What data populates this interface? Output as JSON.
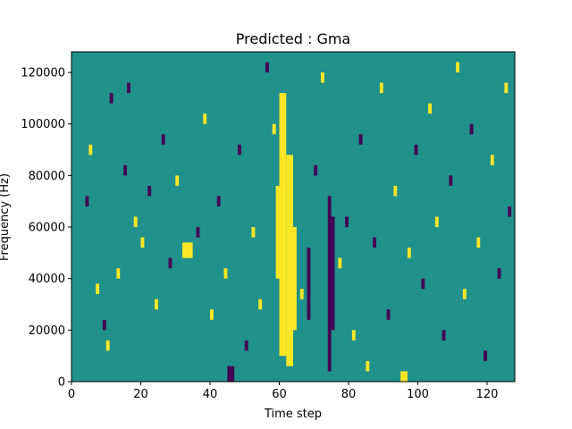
{
  "chart_data": {
    "type": "heatmap",
    "title": "Predicted : Gma",
    "xlabel": "Time step",
    "ylabel": "Frequency (Hz)",
    "xlim": [
      0,
      128
    ],
    "ylim": [
      0,
      128000
    ],
    "xticks": [
      0,
      20,
      40,
      60,
      80,
      100,
      120
    ],
    "yticks": [
      0,
      20000,
      40000,
      60000,
      80000,
      100000,
      120000
    ],
    "n_time_steps": 128,
    "n_freq_bins": 64,
    "value_range": [
      -1,
      1
    ],
    "colormap": {
      "low": "#440154",
      "mid": "#21918c",
      "high": "#fde725"
    },
    "background_value": 0,
    "grid": false,
    "cells": [
      {
        "t": [
          60,
          62
        ],
        "f": [
          5,
          56
        ],
        "v": 1
      },
      {
        "t": [
          62,
          64
        ],
        "f": [
          3,
          44
        ],
        "v": 1
      },
      {
        "t": [
          59,
          60
        ],
        "f": [
          20,
          38
        ],
        "v": 1
      },
      {
        "t": [
          64,
          65
        ],
        "f": [
          10,
          30
        ],
        "v": 1
      },
      {
        "t": [
          32,
          35
        ],
        "f": [
          24,
          27
        ],
        "v": 1
      },
      {
        "t": [
          74,
          75
        ],
        "f": [
          2,
          36
        ],
        "v": -1
      },
      {
        "t": [
          75,
          76
        ],
        "f": [
          10,
          32
        ],
        "v": -1
      },
      {
        "t": [
          68,
          69
        ],
        "f": [
          12,
          26
        ],
        "v": -1
      },
      {
        "t": [
          45,
          47
        ],
        "f": [
          0,
          3
        ],
        "v": -1
      },
      {
        "t": [
          4,
          5
        ],
        "f": [
          34,
          36
        ],
        "v": -1
      },
      {
        "t": [
          5,
          6
        ],
        "f": [
          44,
          46
        ],
        "v": 1
      },
      {
        "t": [
          7,
          8
        ],
        "f": [
          17,
          19
        ],
        "v": 1
      },
      {
        "t": [
          9,
          10
        ],
        "f": [
          10,
          12
        ],
        "v": -1
      },
      {
        "t": [
          10,
          11
        ],
        "f": [
          6,
          8
        ],
        "v": 1
      },
      {
        "t": [
          11,
          12
        ],
        "f": [
          54,
          56
        ],
        "v": -1
      },
      {
        "t": [
          13,
          14
        ],
        "f": [
          20,
          22
        ],
        "v": 1
      },
      {
        "t": [
          15,
          16
        ],
        "f": [
          40,
          42
        ],
        "v": -1
      },
      {
        "t": [
          16,
          17
        ],
        "f": [
          56,
          58
        ],
        "v": -1
      },
      {
        "t": [
          18,
          19
        ],
        "f": [
          30,
          32
        ],
        "v": 1
      },
      {
        "t": [
          20,
          21
        ],
        "f": [
          26,
          28
        ],
        "v": 1
      },
      {
        "t": [
          22,
          23
        ],
        "f": [
          36,
          38
        ],
        "v": -1
      },
      {
        "t": [
          24,
          25
        ],
        "f": [
          14,
          16
        ],
        "v": 1
      },
      {
        "t": [
          26,
          27
        ],
        "f": [
          46,
          48
        ],
        "v": -1
      },
      {
        "t": [
          28,
          29
        ],
        "f": [
          22,
          24
        ],
        "v": -1
      },
      {
        "t": [
          30,
          31
        ],
        "f": [
          38,
          40
        ],
        "v": 1
      },
      {
        "t": [
          36,
          37
        ],
        "f": [
          28,
          30
        ],
        "v": -1
      },
      {
        "t": [
          38,
          39
        ],
        "f": [
          50,
          52
        ],
        "v": 1
      },
      {
        "t": [
          40,
          41
        ],
        "f": [
          12,
          14
        ],
        "v": 1
      },
      {
        "t": [
          42,
          43
        ],
        "f": [
          34,
          36
        ],
        "v": -1
      },
      {
        "t": [
          44,
          45
        ],
        "f": [
          20,
          22
        ],
        "v": 1
      },
      {
        "t": [
          48,
          49
        ],
        "f": [
          44,
          46
        ],
        "v": -1
      },
      {
        "t": [
          50,
          51
        ],
        "f": [
          6,
          8
        ],
        "v": -1
      },
      {
        "t": [
          52,
          53
        ],
        "f": [
          28,
          30
        ],
        "v": 1
      },
      {
        "t": [
          54,
          55
        ],
        "f": [
          14,
          16
        ],
        "v": 1
      },
      {
        "t": [
          56,
          57
        ],
        "f": [
          60,
          62
        ],
        "v": -1
      },
      {
        "t": [
          58,
          59
        ],
        "f": [
          48,
          50
        ],
        "v": 1
      },
      {
        "t": [
          66,
          67
        ],
        "f": [
          16,
          18
        ],
        "v": 1
      },
      {
        "t": [
          70,
          71
        ],
        "f": [
          40,
          42
        ],
        "v": -1
      },
      {
        "t": [
          72,
          73
        ],
        "f": [
          58,
          60
        ],
        "v": 1
      },
      {
        "t": [
          77,
          78
        ],
        "f": [
          22,
          24
        ],
        "v": 1
      },
      {
        "t": [
          79,
          80
        ],
        "f": [
          30,
          32
        ],
        "v": -1
      },
      {
        "t": [
          81,
          82
        ],
        "f": [
          8,
          10
        ],
        "v": 1
      },
      {
        "t": [
          83,
          84
        ],
        "f": [
          46,
          48
        ],
        "v": -1
      },
      {
        "t": [
          85,
          86
        ],
        "f": [
          2,
          4
        ],
        "v": 1
      },
      {
        "t": [
          87,
          88
        ],
        "f": [
          26,
          28
        ],
        "v": -1
      },
      {
        "t": [
          89,
          90
        ],
        "f": [
          56,
          58
        ],
        "v": 1
      },
      {
        "t": [
          91,
          92
        ],
        "f": [
          12,
          14
        ],
        "v": -1
      },
      {
        "t": [
          93,
          94
        ],
        "f": [
          36,
          38
        ],
        "v": 1
      },
      {
        "t": [
          95,
          97
        ],
        "f": [
          0,
          2
        ],
        "v": 1
      },
      {
        "t": [
          97,
          98
        ],
        "f": [
          24,
          26
        ],
        "v": 1
      },
      {
        "t": [
          99,
          100
        ],
        "f": [
          44,
          46
        ],
        "v": -1
      },
      {
        "t": [
          101,
          102
        ],
        "f": [
          18,
          20
        ],
        "v": -1
      },
      {
        "t": [
          103,
          104
        ],
        "f": [
          52,
          54
        ],
        "v": 1
      },
      {
        "t": [
          105,
          106
        ],
        "f": [
          30,
          32
        ],
        "v": 1
      },
      {
        "t": [
          107,
          108
        ],
        "f": [
          8,
          10
        ],
        "v": -1
      },
      {
        "t": [
          109,
          110
        ],
        "f": [
          38,
          40
        ],
        "v": -1
      },
      {
        "t": [
          111,
          112
        ],
        "f": [
          60,
          62
        ],
        "v": 1
      },
      {
        "t": [
          113,
          114
        ],
        "f": [
          16,
          18
        ],
        "v": 1
      },
      {
        "t": [
          115,
          116
        ],
        "f": [
          48,
          50
        ],
        "v": -1
      },
      {
        "t": [
          117,
          118
        ],
        "f": [
          26,
          28
        ],
        "v": 1
      },
      {
        "t": [
          119,
          120
        ],
        "f": [
          4,
          6
        ],
        "v": -1
      },
      {
        "t": [
          121,
          122
        ],
        "f": [
          42,
          44
        ],
        "v": 1
      },
      {
        "t": [
          123,
          124
        ],
        "f": [
          20,
          22
        ],
        "v": -1
      },
      {
        "t": [
          125,
          126
        ],
        "f": [
          56,
          58
        ],
        "v": 1
      },
      {
        "t": [
          126,
          127
        ],
        "f": [
          32,
          34
        ],
        "v": -1
      }
    ]
  }
}
